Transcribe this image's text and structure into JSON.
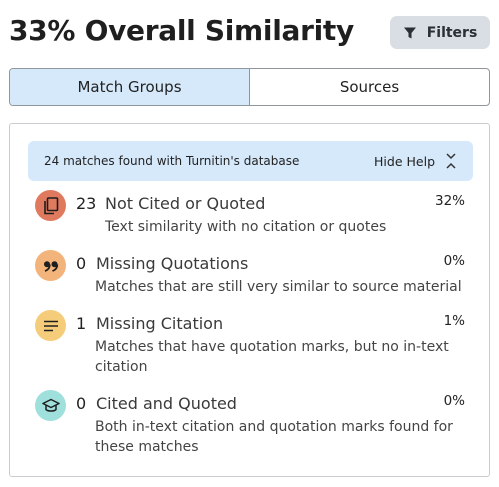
{
  "header": {
    "title": "33% Overall Similarity",
    "filters_label": "Filters",
    "filter_icon": "funnel-icon"
  },
  "tabs": [
    {
      "label": "Match Groups",
      "active": true
    },
    {
      "label": "Sources",
      "active": false
    }
  ],
  "banner": {
    "text": "24 matches found with Turnitin's database",
    "hide_help_label": "Hide Help",
    "toggle_icon": "chevrons-collapse-icon"
  },
  "match_groups": [
    {
      "count": "23",
      "name": "Not Cited or Quoted",
      "description": "Text similarity with no citation or quotes",
      "percent": "32%",
      "icon": "copy-icon",
      "color": "#e07a5f"
    },
    {
      "count": "0",
      "name": "Missing Quotations",
      "description": "Matches that are still very similar to source material",
      "percent": "0%",
      "icon": "quote-icon",
      "color": "#f2b47a"
    },
    {
      "count": "1",
      "name": "Missing Citation",
      "description_line1": "Matches that have quotation marks, but no in-text",
      "description_line2": "citation",
      "percent": "1%",
      "icon": "lines-icon",
      "color": "#f5cd7a"
    },
    {
      "count": "0",
      "name": "Cited and Quoted",
      "description_line1": "Both in-text citation and quotation marks found for",
      "description_line2": "these matches",
      "percent": "0%",
      "icon": "graduation-cap-icon",
      "color": "#9fe0dd"
    }
  ]
}
